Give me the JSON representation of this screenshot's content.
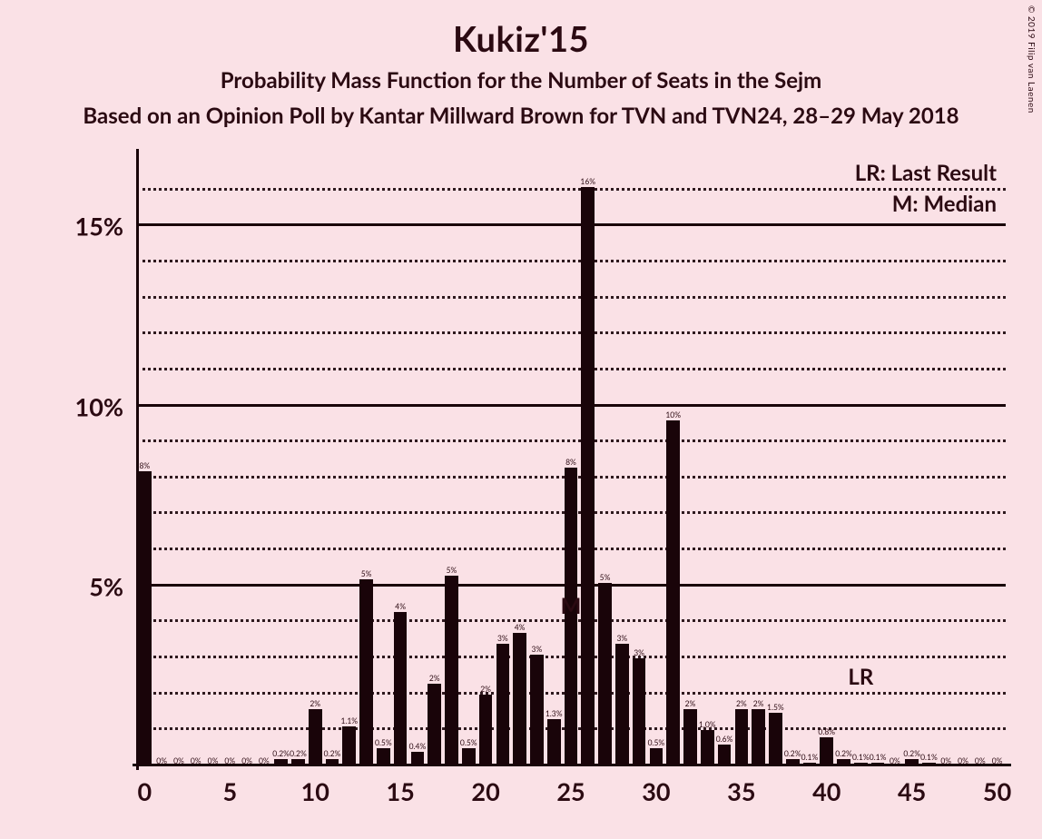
{
  "title": "Kukiz'15",
  "subtitle": "Probability Mass Function for the Number of Seats in the Sejm",
  "source_line": "Based on an Opinion Poll by Kantar Millward Brown for TVN and TVN24, 28–29 May 2018",
  "copyright": "© 2019 Filip van Laenen",
  "legend_lr": "LR: Last Result",
  "legend_m": "M: Median",
  "marker_m": "M",
  "marker_lr": "LR",
  "chart": {
    "type": "bar",
    "background_color": "#fae1e6",
    "bar_color": "#190409",
    "axis_color": "#190409",
    "grid_major_color": "#190409",
    "grid_minor_color": "#190409",
    "text_color": "#2b0a12",
    "title_fontsize_pt": 28,
    "subtitle_fontsize_pt": 18,
    "axis_label_fontsize_pt": 20,
    "bar_label_fontsize_pt": 7,
    "xlim": [
      -0.5,
      50.5
    ],
    "ylim": [
      0,
      17
    ],
    "x_ticks": [
      0,
      5,
      10,
      15,
      20,
      25,
      30,
      35,
      40,
      45,
      50
    ],
    "y_ticks_major": [
      5,
      10,
      15
    ],
    "y_ticks_minor": [
      1,
      2,
      3,
      4,
      6,
      7,
      8,
      9,
      11,
      12,
      13,
      14,
      16
    ],
    "y_tick_labels": [
      "5%",
      "10%",
      "15%"
    ],
    "median_x": 25,
    "last_result_x": 42,
    "bar_width_ratio": 0.78,
    "series": [
      {
        "x": 0,
        "y": 8.2,
        "label": "8%"
      },
      {
        "x": 1,
        "y": 0,
        "label": "0%"
      },
      {
        "x": 2,
        "y": 0,
        "label": "0%"
      },
      {
        "x": 3,
        "y": 0,
        "label": "0%"
      },
      {
        "x": 4,
        "y": 0,
        "label": "0%"
      },
      {
        "x": 5,
        "y": 0,
        "label": "0%"
      },
      {
        "x": 6,
        "y": 0,
        "label": "0%"
      },
      {
        "x": 7,
        "y": 0,
        "label": "0%"
      },
      {
        "x": 8,
        "y": 0.2,
        "label": "0.2%"
      },
      {
        "x": 9,
        "y": 0.2,
        "label": "0.2%"
      },
      {
        "x": 10,
        "y": 1.6,
        "label": "2%"
      },
      {
        "x": 11,
        "y": 0.2,
        "label": "0.2%"
      },
      {
        "x": 12,
        "y": 1.1,
        "label": "1.1%"
      },
      {
        "x": 13,
        "y": 5.2,
        "label": "5%"
      },
      {
        "x": 14,
        "y": 0.5,
        "label": "0.5%"
      },
      {
        "x": 15,
        "y": 4.3,
        "label": "4%"
      },
      {
        "x": 16,
        "y": 0.4,
        "label": "0.4%"
      },
      {
        "x": 17,
        "y": 2.3,
        "label": "2%"
      },
      {
        "x": 18,
        "y": 5.3,
        "label": "5%"
      },
      {
        "x": 19,
        "y": 0.5,
        "label": "0.5%"
      },
      {
        "x": 20,
        "y": 2.0,
        "label": "2%"
      },
      {
        "x": 21,
        "y": 3.4,
        "label": "3%"
      },
      {
        "x": 22,
        "y": 3.7,
        "label": "4%"
      },
      {
        "x": 23,
        "y": 3.1,
        "label": "3%"
      },
      {
        "x": 24,
        "y": 1.3,
        "label": "1.3%"
      },
      {
        "x": 25,
        "y": 8.3,
        "label": "8%"
      },
      {
        "x": 26,
        "y": 16.1,
        "label": "16%"
      },
      {
        "x": 27,
        "y": 5.1,
        "label": "5%"
      },
      {
        "x": 28,
        "y": 3.4,
        "label": "3%"
      },
      {
        "x": 29,
        "y": 3.0,
        "label": "3%"
      },
      {
        "x": 30,
        "y": 0.5,
        "label": "0.5%"
      },
      {
        "x": 31,
        "y": 9.6,
        "label": "10%"
      },
      {
        "x": 32,
        "y": 1.6,
        "label": "2%"
      },
      {
        "x": 33,
        "y": 1.0,
        "label": "1.0%"
      },
      {
        "x": 34,
        "y": 0.6,
        "label": "0.6%"
      },
      {
        "x": 35,
        "y": 1.6,
        "label": "2%"
      },
      {
        "x": 36,
        "y": 1.6,
        "label": "2%"
      },
      {
        "x": 37,
        "y": 1.5,
        "label": "1.5%"
      },
      {
        "x": 38,
        "y": 0.2,
        "label": "0.2%"
      },
      {
        "x": 39,
        "y": 0.1,
        "label": "0.1%"
      },
      {
        "x": 40,
        "y": 0.8,
        "label": "0.8%"
      },
      {
        "x": 41,
        "y": 0.2,
        "label": "0.2%"
      },
      {
        "x": 42,
        "y": 0.1,
        "label": "0.1%"
      },
      {
        "x": 43,
        "y": 0.1,
        "label": "0.1%"
      },
      {
        "x": 44,
        "y": 0,
        "label": "0%"
      },
      {
        "x": 45,
        "y": 0.2,
        "label": "0.2%"
      },
      {
        "x": 46,
        "y": 0.1,
        "label": "0.1%"
      },
      {
        "x": 47,
        "y": 0,
        "label": "0%"
      },
      {
        "x": 48,
        "y": 0,
        "label": "0%"
      },
      {
        "x": 49,
        "y": 0,
        "label": "0%"
      },
      {
        "x": 50,
        "y": 0,
        "label": "0%"
      }
    ]
  }
}
